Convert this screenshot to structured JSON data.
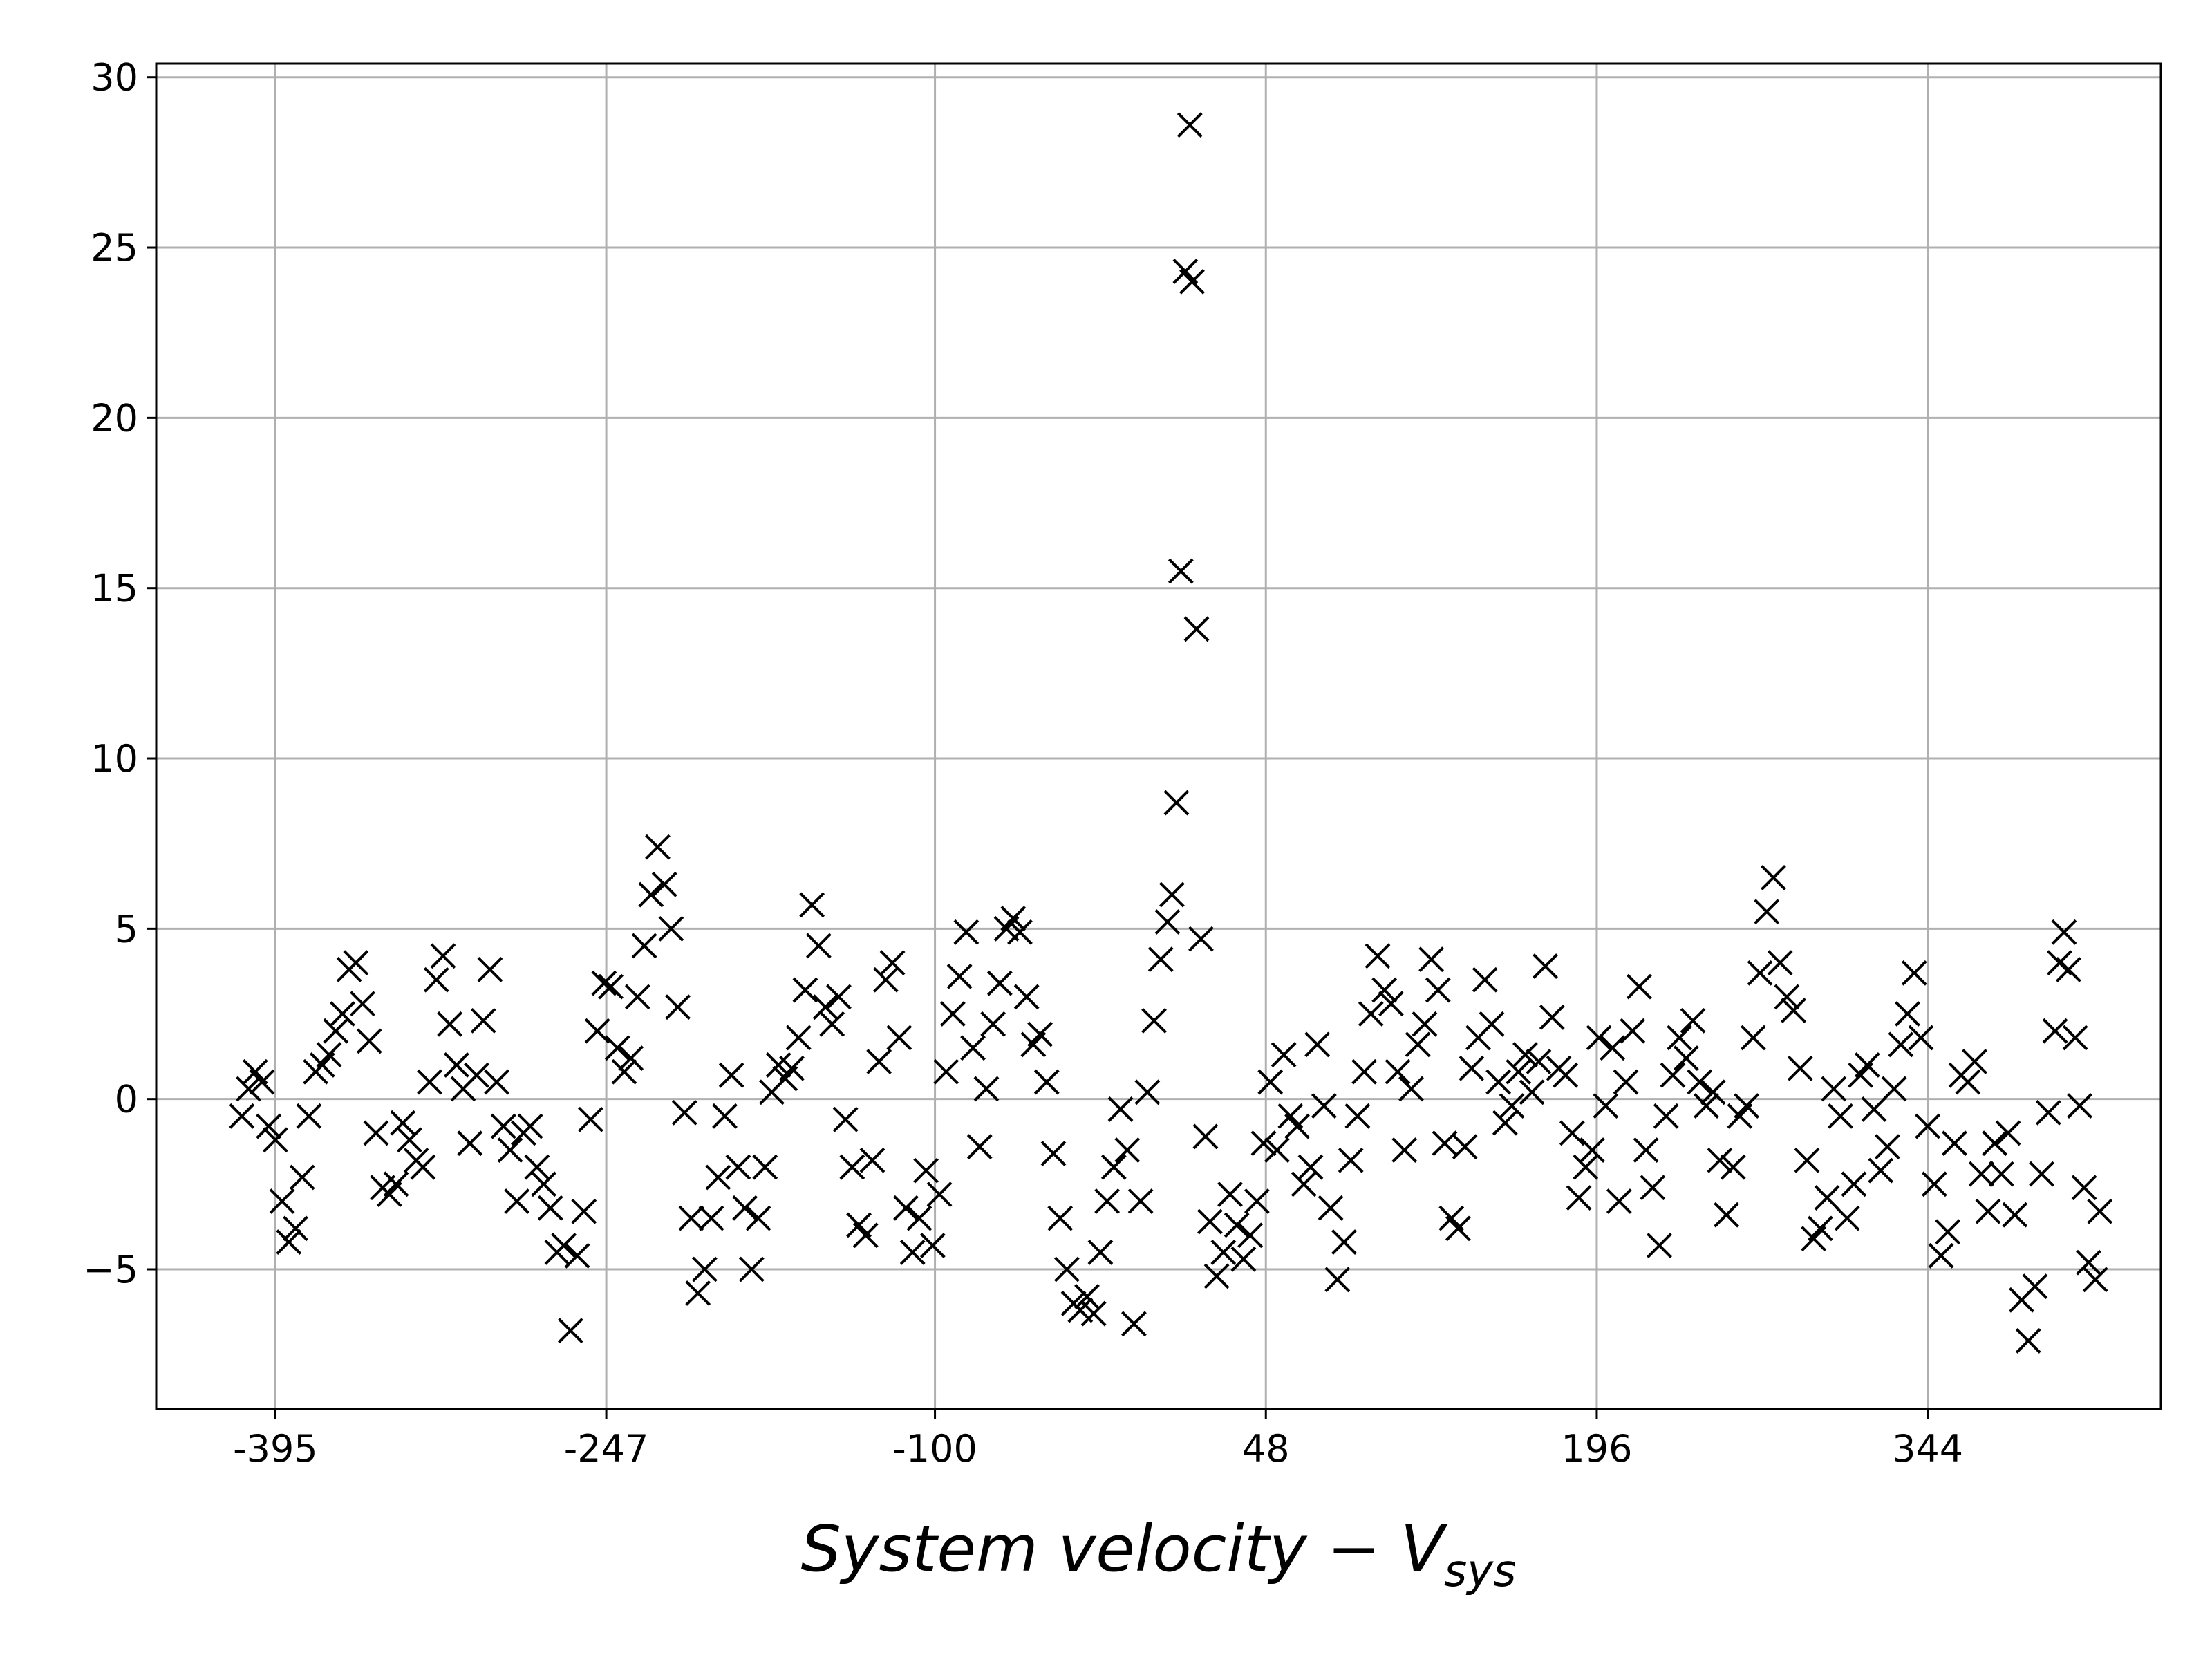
{
  "chart_data": {
    "type": "scatter",
    "xlabel": {
      "text": "System velocity − V",
      "sub": "sys"
    },
    "marker": "x",
    "color": "#000000",
    "grid": true,
    "xlim": [
      -448.3,
      448.3
    ],
    "ylim": [
      -9.1,
      30.4
    ],
    "xticks": [
      -395,
      -247,
      -100,
      48,
      196,
      344
    ],
    "yticks": [
      {
        "value": -5,
        "label": "−5"
      },
      0,
      5,
      10,
      15,
      20,
      25,
      30
    ],
    "x": [
      -410,
      -407,
      -404,
      -401,
      -398,
      -395,
      -392,
      -389,
      -386,
      -383,
      -380,
      -377,
      -374,
      -371,
      -368,
      -365,
      -362,
      -359,
      -356,
      -353,
      -350,
      -347,
      -344,
      -341,
      -338,
      -335,
      -332,
      -329,
      -326,
      -323,
      -320,
      -317,
      -314,
      -311,
      -308,
      -305,
      -302,
      -299,
      -296,
      -293,
      -290,
      -287,
      -284,
      -281,
      -278,
      -275,
      -272,
      -269,
      -266,
      -263,
      -260,
      -257,
      -254,
      -251,
      -248,
      -245,
      -242,
      -239,
      -236,
      -233,
      -230,
      -227,
      -224,
      -221,
      -218,
      -215,
      -212,
      -209,
      -206,
      -203,
      -200,
      -197,
      -194,
      -191,
      -188,
      -185,
      -182,
      -179,
      -176,
      -173,
      -170,
      -167,
      -164,
      -161,
      -158,
      -155,
      -152,
      -149,
      -146,
      -143,
      -140,
      -137,
      -134,
      -131,
      -128,
      -125,
      -122,
      -119,
      -116,
      -113,
      -110,
      -107,
      -104,
      -101,
      -98,
      -95,
      -92,
      -89,
      -86,
      -83,
      -80,
      -77,
      -74,
      -71,
      -68,
      -65,
      -62,
      -59,
      -56,
      -53,
      -50,
      -47,
      -44,
      -41,
      -38,
      -35,
      -32,
      -29,
      -26,
      -23,
      -20,
      -17,
      -14,
      -11,
      -8,
      -5,
      -2,
      1,
      4,
      6,
      8,
      10,
      12,
      14,
      15,
      17,
      19,
      21,
      23,
      26,
      29,
      32,
      35,
      38,
      41,
      44,
      47,
      50,
      53,
      56,
      59,
      62,
      65,
      68,
      71,
      74,
      77,
      80,
      83,
      86,
      89,
      92,
      95,
      98,
      101,
      104,
      107,
      110,
      113,
      116,
      119,
      122,
      125,
      128,
      131,
      134,
      137,
      140,
      143,
      146,
      149,
      152,
      155,
      158,
      161,
      164,
      167,
      170,
      173,
      176,
      179,
      182,
      185,
      188,
      191,
      194,
      197,
      200,
      203,
      206,
      209,
      212,
      215,
      218,
      221,
      224,
      227,
      230,
      233,
      236,
      239,
      242,
      245,
      248,
      251,
      254,
      257,
      260,
      263,
      266,
      269,
      272,
      275,
      278,
      281,
      284,
      287,
      290,
      293,
      296,
      299,
      302,
      305,
      308,
      311,
      314,
      317,
      320,
      323,
      326,
      329,
      332,
      335,
      338,
      341,
      344,
      347,
      350,
      353,
      356,
      359,
      362,
      365,
      368,
      371,
      374,
      377,
      380,
      383,
      386,
      389,
      392,
      395,
      398,
      401,
      403,
      405,
      407,
      410,
      412,
      414,
      416,
      419,
      421
    ],
    "y": [
      -0.5,
      0.3,
      0.8,
      0.5,
      -0.8,
      -1.2,
      -3,
      -4.2,
      -3.8,
      -2.3,
      -0.5,
      0.8,
      1,
      1.3,
      2,
      2.5,
      3.8,
      4,
      2.8,
      1.7,
      -1,
      -2.6,
      -2.8,
      -2.5,
      -0.7,
      -1.2,
      -1.8,
      -2,
      0.5,
      3.5,
      4.2,
      2.2,
      1,
      0.3,
      -1.3,
      0.7,
      2.3,
      3.8,
      0.5,
      -0.8,
      -1.5,
      -3,
      -1,
      -0.8,
      -2,
      -2.5,
      -3.2,
      -4.5,
      -4.3,
      -6.8,
      -4.6,
      -3.3,
      -0.6,
      2,
      3.4,
      3.3,
      1.5,
      0.8,
      1.2,
      3,
      4.5,
      6,
      7.4,
      6.3,
      5,
      2.7,
      -0.4,
      -3.5,
      -5.7,
      -5,
      -3.5,
      -2.3,
      -0.5,
      0.7,
      -2,
      -3.2,
      -5,
      -3.5,
      -2,
      0.2,
      1,
      0.6,
      0.9,
      1.8,
      3.2,
      5.7,
      4.5,
      2.7,
      2.2,
      3,
      -0.6,
      -2,
      -3.7,
      -4,
      -1.8,
      1.1,
      3.5,
      4,
      1.8,
      -3.2,
      -4.5,
      -3.5,
      -2.1,
      -4.3,
      -2.8,
      0.8,
      2.5,
      3.6,
      4.9,
      1.5,
      -1.4,
      0.3,
      2.2,
      3.4,
      5,
      5.3,
      4.9,
      3,
      1.6,
      1.9,
      0.5,
      -1.6,
      -3.5,
      -5,
      -6,
      -6.2,
      -5.8,
      -6.3,
      -4.5,
      -3,
      -2,
      -0.3,
      -1.5,
      -6.6,
      -3,
      0.2,
      2.3,
      4.1,
      5.2,
      6,
      8.7,
      15.5,
      24.3,
      28.6,
      24,
      13.8,
      4.7,
      -1.1,
      -3.6,
      -5.2,
      -4.5,
      -2.8,
      -3.7,
      -4.7,
      -4,
      -3,
      -1.3,
      0.5,
      -1.5,
      1.3,
      -0.5,
      -0.8,
      -2.5,
      -2,
      1.6,
      -0.2,
      -3.2,
      -5.3,
      -4.2,
      -1.8,
      -0.5,
      0.8,
      2.5,
      4.2,
      3.2,
      2.8,
      0.8,
      -1.5,
      0.3,
      1.6,
      2.2,
      4.1,
      3.2,
      -1.3,
      -3.5,
      -3.8,
      -1.4,
      0.9,
      1.8,
      3.5,
      2.2,
      0.5,
      -0.7,
      -0.2,
      0.8,
      1.3,
      0.2,
      1.1,
      3.9,
      2.4,
      0.9,
      0.7,
      -1,
      -2.9,
      -2,
      -1.5,
      1.8,
      -0.2,
      1.5,
      -3,
      0.5,
      2,
      3.3,
      -1.5,
      -2.6,
      -4.3,
      -0.5,
      0.7,
      1.8,
      1.2,
      2.3,
      0.5,
      -0.2,
      0.2,
      -1.8,
      -3.4,
      -2,
      -0.5,
      -0.2,
      1.8,
      3.7,
      5.5,
      6.5,
      4,
      3,
      2.6,
      0.9,
      -1.8,
      -4.1,
      -3.8,
      -2.9,
      0.3,
      -0.5,
      -3.5,
      -2.5,
      0.7,
      1,
      -0.3,
      -2.1,
      -1.4,
      0.3,
      1.6,
      2.5,
      3.7,
      1.8,
      -0.8,
      -2.5,
      -4.6,
      -3.9,
      -1.3,
      0.7,
      0.5,
      1.1,
      -2.2,
      -3.3,
      -1.3,
      -2.2,
      -1,
      -3.4,
      -5.9,
      -7.1,
      -5.5,
      -2.2,
      -0.4,
      2,
      4,
      4.9,
      3.8,
      1.8,
      -0.2,
      -2.6,
      -4.8,
      -5.3,
      -3.3
    ]
  }
}
